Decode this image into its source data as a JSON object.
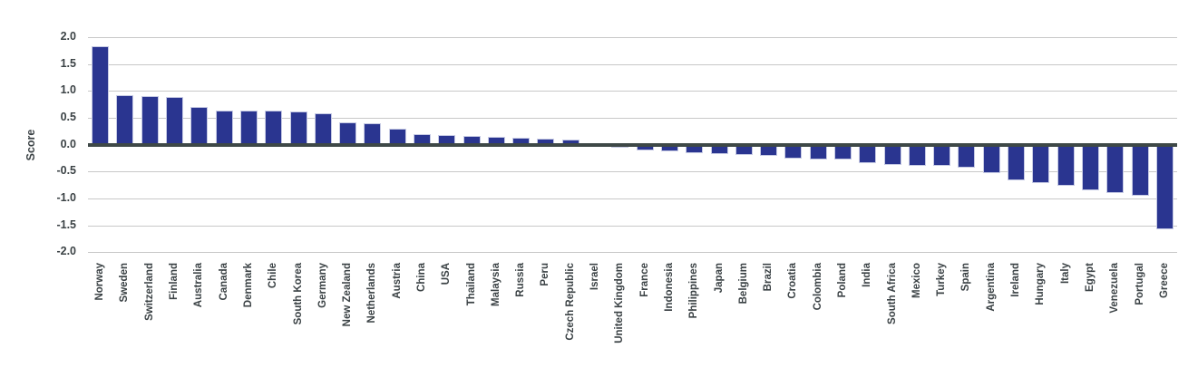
{
  "chart_data": {
    "type": "bar",
    "title": "",
    "xlabel": "",
    "ylabel": "Score",
    "ylim": [
      -2.0,
      2.0
    ],
    "ytick_step": 0.5,
    "ytick_labels": [
      "2.0",
      "1.5",
      "1.0",
      "0.5",
      "0.0",
      "-0.5",
      "-1.0",
      "-1.5",
      "-2.0"
    ],
    "yticks": [
      2.0,
      1.5,
      1.0,
      0.5,
      0.0,
      -0.5,
      -1.0,
      -1.5,
      -2.0
    ],
    "grid": true,
    "legend": false,
    "bar_color": "#2a3590",
    "bar_border_color": "#c6cae4",
    "gridline_color": "#c8c8c8",
    "zero_line_color": "#3e4847",
    "text_color": "#3b4245",
    "categories": [
      "Norway",
      "Sweden",
      "Switzerland",
      "Finland",
      "Australia",
      "Canada",
      "Denmark",
      "Chile",
      "South Korea",
      "Germany",
      "New Zealand",
      "Netherlands",
      "Austria",
      "China",
      "USA",
      "Thailand",
      "Malaysia",
      "Russia",
      "Peru",
      "Czech Republic",
      "Israel",
      "United Kingdom",
      "France",
      "Indonesia",
      "Philippines",
      "Japan",
      "Belgium",
      "Brazil",
      "Croatia",
      "Colombia",
      "Poland",
      "India",
      "South Africa",
      "Mexico",
      "Turkey",
      "Spain",
      "Argentina",
      "Ireland",
      "Hungary",
      "Italy",
      "Egypt",
      "Venezuela",
      "Portugal",
      "Greece"
    ],
    "values": [
      1.84,
      0.92,
      0.9,
      0.89,
      0.7,
      0.64,
      0.63,
      0.63,
      0.62,
      0.59,
      0.42,
      0.4,
      0.3,
      0.19,
      0.18,
      0.16,
      0.14,
      0.13,
      0.12,
      0.1,
      -0.02,
      -0.06,
      -0.1,
      -0.12,
      -0.16,
      -0.18,
      -0.19,
      -0.21,
      -0.25,
      -0.28,
      -0.28,
      -0.34,
      -0.38,
      -0.39,
      -0.4,
      -0.42,
      -0.52,
      -0.66,
      -0.72,
      -0.77,
      -0.85,
      -0.9,
      -0.95,
      -1.57
    ]
  }
}
